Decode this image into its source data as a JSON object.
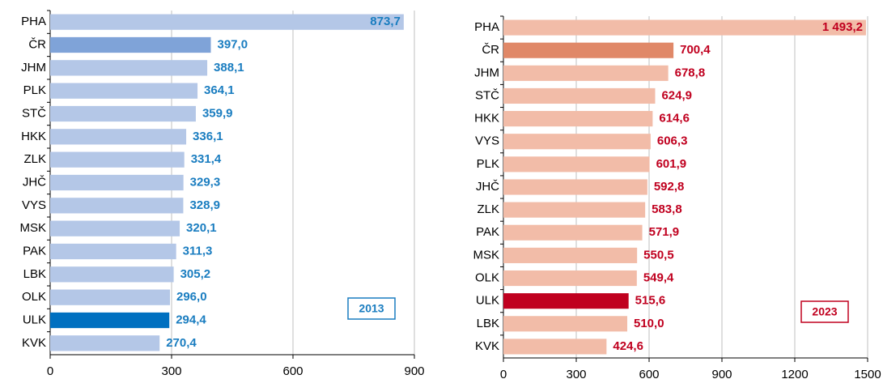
{
  "chart_data": [
    {
      "type": "bar",
      "orientation": "horizontal",
      "categories": [
        "PHA",
        "ČR",
        "JHM",
        "PLK",
        "STČ",
        "HKK",
        "ZLK",
        "JHČ",
        "VYS",
        "MSK",
        "PAK",
        "LBK",
        "OLK",
        "ULK",
        "KVK"
      ],
      "values": [
        873.7,
        397.0,
        388.1,
        364.1,
        359.9,
        336.1,
        331.4,
        329.3,
        328.9,
        320.1,
        311.3,
        305.2,
        296.0,
        294.4,
        270.4
      ],
      "value_labels": [
        "873,7",
        "397,0",
        "388,1",
        "364,1",
        "359,9",
        "336,1",
        "331,4",
        "329,3",
        "328,9",
        "320,1",
        "311,3",
        "305,2",
        "296,0",
        "294,4",
        "270,4"
      ],
      "colors": [
        "#b4c7e7",
        "#7fa3d8",
        "#b4c7e7",
        "#b4c7e7",
        "#b4c7e7",
        "#b4c7e7",
        "#b4c7e7",
        "#b4c7e7",
        "#b4c7e7",
        "#b4c7e7",
        "#b4c7e7",
        "#b4c7e7",
        "#b4c7e7",
        "#0070c0",
        "#b4c7e7"
      ],
      "label_color": "#1a7dc0",
      "xlim": [
        0,
        900
      ],
      "xticks": [
        0,
        300,
        600,
        900
      ],
      "grid": true,
      "annotation": "2013"
    },
    {
      "type": "bar",
      "orientation": "horizontal",
      "categories": [
        "PHA",
        "ČR",
        "JHM",
        "STČ",
        "HKK",
        "VYS",
        "PLK",
        "JHČ",
        "ZLK",
        "PAK",
        "MSK",
        "OLK",
        "ULK",
        "LBK",
        "KVK"
      ],
      "values": [
        1493.2,
        700.4,
        678.8,
        624.9,
        614.6,
        606.3,
        601.9,
        592.8,
        583.8,
        571.9,
        550.5,
        549.4,
        515.6,
        510.0,
        424.6
      ],
      "value_labels": [
        "1 493,2",
        "700,4",
        "678,8",
        "624,9",
        "614,6",
        "606,3",
        "601,9",
        "592,8",
        "583,8",
        "571,9",
        "550,5",
        "549,4",
        "515,6",
        "510,0",
        "424,6"
      ],
      "colors": [
        "#f2bca8",
        "#e08868",
        "#f2bca8",
        "#f2bca8",
        "#f2bca8",
        "#f2bca8",
        "#f2bca8",
        "#f2bca8",
        "#f2bca8",
        "#f2bca8",
        "#f2bca8",
        "#f2bca8",
        "#c0001f",
        "#f2bca8",
        "#f2bca8"
      ],
      "label_color": "#c0001f",
      "xlim": [
        0,
        1500
      ],
      "xticks": [
        0,
        300,
        600,
        900,
        1200,
        1500
      ],
      "grid": true,
      "annotation": "2023"
    }
  ]
}
